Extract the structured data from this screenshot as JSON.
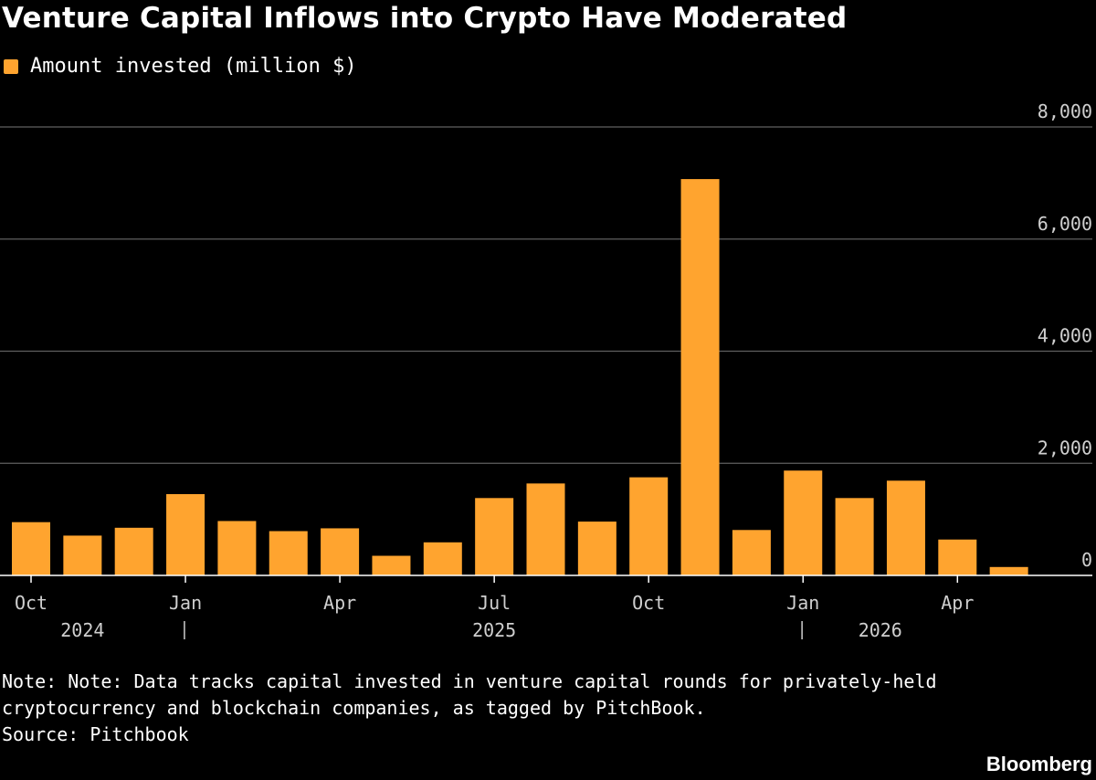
{
  "title": "Venture Capital Inflows into Crypto Have Moderated",
  "colors": {
    "background": "#000000",
    "bar": "#FFA42F",
    "grid": "#5f5f5f",
    "text": "#ffffff",
    "axis_text": "#cfcfcf"
  },
  "note": "Note: Note: Data tracks capital invested in venture capital rounds for privately-held cryptocurrency and blockchain companies, as tagged by PitchBook.",
  "source": "Source: Pitchbook",
  "brand": "Bloomberg",
  "chart_data": {
    "type": "bar",
    "title": "Venture Capital Inflows into Crypto Have Moderated",
    "legend_position": "top-left",
    "grid": true,
    "y_axis_side": "right",
    "ylim": [
      0,
      8000
    ],
    "y_ticks": [
      0,
      2000,
      4000,
      6000,
      8000
    ],
    "y_tick_labels": [
      "0",
      "2,000",
      "4,000",
      "6,000",
      "8,000"
    ],
    "categories": [
      "Oct 2024",
      "Nov 2024",
      "Dec 2024",
      "Jan 2025",
      "Feb 2025",
      "Mar 2025",
      "Apr 2025",
      "May 2025",
      "Jun 2025",
      "Jul 2025",
      "Aug 2025",
      "Sep 2025",
      "Oct 2025",
      "Nov 2025",
      "Dec 2025",
      "Jan 2026",
      "Feb 2026",
      "Mar 2026",
      "Apr 2026",
      "May 2026"
    ],
    "x_tick_labels": [
      {
        "index": 0,
        "label": "Oct"
      },
      {
        "index": 3,
        "label": "Jan"
      },
      {
        "index": 6,
        "label": "Apr"
      },
      {
        "index": 9,
        "label": "Jul"
      },
      {
        "index": 12,
        "label": "Oct"
      },
      {
        "index": 15,
        "label": "Jan"
      },
      {
        "index": 18,
        "label": "Apr"
      }
    ],
    "year_labels": [
      {
        "label": "2024",
        "index": 1
      },
      {
        "label": "2025",
        "index": 9
      },
      {
        "label": "2026",
        "index": 16.5
      }
    ],
    "year_separators": [
      3,
      15
    ],
    "series": [
      {
        "name": "Amount invested (million $)",
        "values": [
          950,
          710,
          850,
          1450,
          970,
          790,
          840,
          350,
          590,
          1380,
          1640,
          960,
          1750,
          7070,
          810,
          1870,
          1380,
          1690,
          640,
          150
        ]
      }
    ]
  }
}
